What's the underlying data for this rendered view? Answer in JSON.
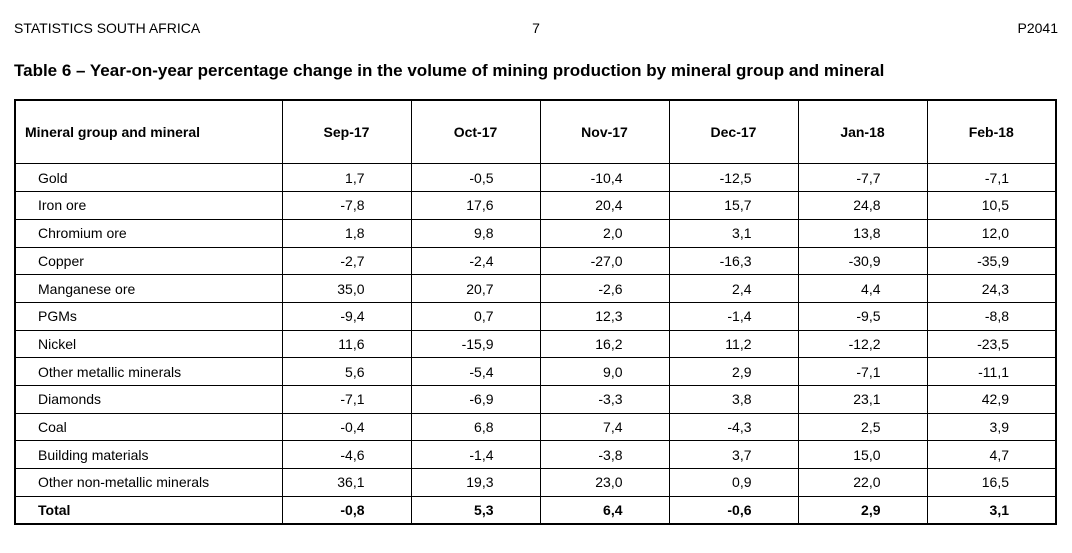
{
  "page": {
    "org": "STATISTICS SOUTH AFRICA",
    "page_number": "7",
    "report_code": "P2041"
  },
  "title": "Table 6 – Year-on-year percentage change in the volume of mining production by mineral group and mineral",
  "table": {
    "columns": [
      "Mineral group and mineral",
      "Sep-17",
      "Oct-17",
      "Nov-17",
      "Dec-17",
      "Jan-18",
      "Feb-18"
    ],
    "rows": [
      {
        "label": "Gold",
        "values": [
          "1,7",
          "-0,5",
          "-10,4",
          "-12,5",
          "-7,7",
          "-7,1"
        ]
      },
      {
        "label": "Iron ore",
        "values": [
          "-7,8",
          "17,6",
          "20,4",
          "15,7",
          "24,8",
          "10,5"
        ]
      },
      {
        "label": "Chromium ore",
        "values": [
          "1,8",
          "9,8",
          "2,0",
          "3,1",
          "13,8",
          "12,0"
        ]
      },
      {
        "label": "Copper",
        "values": [
          "-2,7",
          "-2,4",
          "-27,0",
          "-16,3",
          "-30,9",
          "-35,9"
        ]
      },
      {
        "label": "Manganese ore",
        "values": [
          "35,0",
          "20,7",
          "-2,6",
          "2,4",
          "4,4",
          "24,3"
        ]
      },
      {
        "label": "PGMs",
        "values": [
          "-9,4",
          "0,7",
          "12,3",
          "-1,4",
          "-9,5",
          "-8,8"
        ]
      },
      {
        "label": "Nickel",
        "values": [
          "11,6",
          "-15,9",
          "16,2",
          "11,2",
          "-12,2",
          "-23,5"
        ]
      },
      {
        "label": "Other metallic minerals",
        "values": [
          "5,6",
          "-5,4",
          "9,0",
          "2,9",
          "-7,1",
          "-11,1"
        ]
      },
      {
        "label": "Diamonds",
        "values": [
          "-7,1",
          "-6,9",
          "-3,3",
          "3,8",
          "23,1",
          "42,9"
        ]
      },
      {
        "label": "Coal",
        "values": [
          "-0,4",
          "6,8",
          "7,4",
          "-4,3",
          "2,5",
          "3,9"
        ]
      },
      {
        "label": "Building materials",
        "values": [
          "-4,6",
          "-1,4",
          "-3,8",
          "3,7",
          "15,0",
          "4,7"
        ]
      },
      {
        "label": "Other non-metallic minerals",
        "values": [
          "36,1",
          "19,3",
          "23,0",
          "0,9",
          "22,0",
          "16,5"
        ]
      }
    ],
    "total_row": {
      "label": "Total",
      "values": [
        "-0,8",
        "5,3",
        "6,4",
        "-0,6",
        "2,9",
        "3,1"
      ]
    }
  }
}
